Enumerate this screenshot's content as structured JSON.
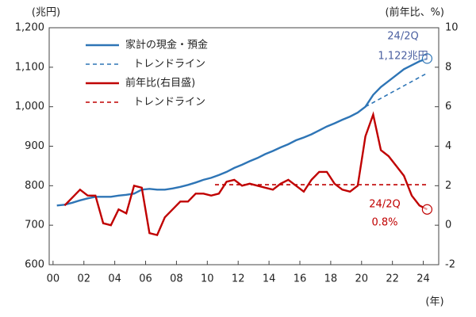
{
  "chart_data": {
    "type": "line",
    "ylabel": "(兆円)",
    "y2label": "(前年比、%)",
    "xlabel": "(年)",
    "x": [
      0.25,
      0.75,
      1.25,
      1.75,
      2.25,
      2.75,
      3.25,
      3.75,
      4.25,
      4.75,
      5.25,
      5.75,
      6.25,
      6.75,
      7.25,
      7.75,
      8.25,
      8.75,
      9.25,
      9.75,
      10.25,
      10.75,
      11.25,
      11.75,
      12.25,
      12.75,
      13.25,
      13.75,
      14.25,
      14.75,
      15.25,
      15.75,
      16.25,
      16.75,
      17.25,
      17.75,
      18.25,
      18.75,
      19.25,
      19.75,
      20.25,
      20.75,
      21.25,
      21.75,
      22.25,
      22.75,
      23.25,
      23.75,
      24.25
    ],
    "series": [
      {
        "name": "家計の現金・預金",
        "color": "#2e75b6",
        "style": "solid",
        "values": [
          750,
          752,
          757,
          763,
          768,
          772,
          772,
          772,
          775,
          777,
          780,
          790,
          792,
          790,
          790,
          793,
          797,
          802,
          808,
          815,
          820,
          827,
          835,
          845,
          853,
          862,
          870,
          880,
          888,
          897,
          905,
          915,
          922,
          930,
          940,
          950,
          958,
          967,
          975,
          985,
          1000,
          1030,
          1050,
          1065,
          1080,
          1095,
          1105,
          1115,
          1122
        ]
      },
      {
        "name": "トレンドライン",
        "color": "#2e75b6",
        "style": "dashed",
        "x": [
          20.25,
          24.25
        ],
        "values": [
          1000,
          1085
        ]
      },
      {
        "name": "前年比(右目盛)",
        "color": "#c00000",
        "style": "solid",
        "axis": "y2",
        "values": [
          null,
          1.0,
          1.4,
          1.8,
          1.5,
          1.5,
          0.1,
          0.0,
          0.8,
          0.6,
          2.0,
          1.9,
          -0.4,
          -0.5,
          0.4,
          0.8,
          1.2,
          1.2,
          1.6,
          1.6,
          1.5,
          1.6,
          2.2,
          2.3,
          2.0,
          2.1,
          2.0,
          1.9,
          1.8,
          2.1,
          2.3,
          2.0,
          1.7,
          2.3,
          2.7,
          2.7,
          2.1,
          1.8,
          1.7,
          2.0,
          4.5,
          5.6,
          3.8,
          3.5,
          3.0,
          2.5,
          1.5,
          1.0,
          0.8
        ]
      },
      {
        "name": "トレンドライン",
        "color": "#c00000",
        "style": "dashed",
        "axis": "y2",
        "x": [
          10.5,
          24.25
        ],
        "values": [
          2.05,
          2.05
        ]
      }
    ],
    "annotations": [
      {
        "text": "24/2Q",
        "color": "#4a5fa0",
        "series": 0
      },
      {
        "text": "1,122兆円",
        "color": "#4a5fa0",
        "series": 0
      },
      {
        "text": "24/2Q",
        "color": "#c00000",
        "series": 2
      },
      {
        "text": "0.8%",
        "color": "#c00000",
        "series": 2
      }
    ],
    "xlim": [
      -0.25,
      25
    ],
    "xticks": [
      {
        "value": 0,
        "label": "00"
      },
      {
        "value": 2,
        "label": "02"
      },
      {
        "value": 4,
        "label": "04"
      },
      {
        "value": 6,
        "label": "06"
      },
      {
        "value": 8,
        "label": "08"
      },
      10,
      12,
      14,
      16,
      18,
      20,
      22,
      24
    ],
    "ylim": [
      600,
      1200
    ],
    "yticks": [
      600,
      700,
      800,
      900,
      {
        "value": 1000,
        "label": "1,000"
      },
      {
        "value": 1100,
        "label": "1,100"
      },
      {
        "value": 1200,
        "label": "1,200"
      }
    ],
    "y2lim": [
      -2,
      10
    ],
    "y2ticks": [
      -2,
      0,
      2,
      4,
      6,
      8,
      10
    ],
    "grid": false
  }
}
